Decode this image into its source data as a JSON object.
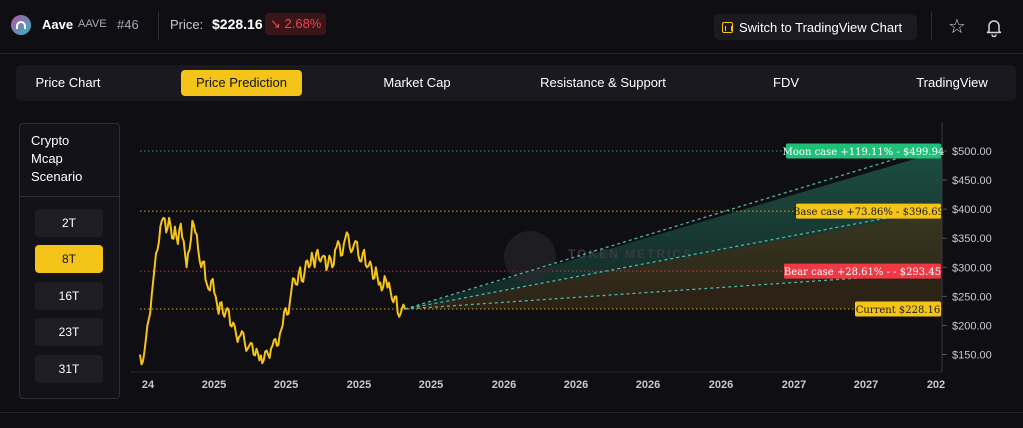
{
  "header": {
    "coin_name": "Aave",
    "coin_symbol": "AAVE",
    "rank": "#46",
    "price_label": "Price:",
    "price_value": "$228.16",
    "price_change": "↘ 2.68%",
    "tradingview_button": "Switch to TradingView Chart",
    "icons": {
      "logo": "aave-logo",
      "tradingview": "chart-icon",
      "star": "star-icon",
      "bell": "bell-icon"
    }
  },
  "tabs": [
    {
      "label": "Price Chart",
      "active": false
    },
    {
      "label": "Price Prediction",
      "active": true
    },
    {
      "label": "Market Cap",
      "active": false
    },
    {
      "label": "Resistance & Support",
      "active": false
    },
    {
      "label": "FDV",
      "active": false
    },
    {
      "label": "TradingView",
      "active": false
    }
  ],
  "scenario": {
    "title_lines": [
      "Crypto",
      "Mcap",
      "Scenario"
    ],
    "options": [
      {
        "label": "2T",
        "active": false
      },
      {
        "label": "8T",
        "active": true
      },
      {
        "label": "16T",
        "active": false
      },
      {
        "label": "23T",
        "active": false
      },
      {
        "label": "31T",
        "active": false
      }
    ]
  },
  "colors": {
    "accent": "#f5c418",
    "negative": "#f0444f",
    "moon": "#21c07a",
    "base": "#f5c418",
    "bear": "#ef3a45",
    "current": "#f5c418",
    "projection": "#4fb3a8"
  },
  "chart_data": {
    "type": "line",
    "y_ticks": [
      "$500.00",
      "$450.00",
      "$400.00",
      "$350.00",
      "$300.00",
      "$250.00",
      "$200.00",
      "$150.00"
    ],
    "ylim": [
      125,
      520
    ],
    "x_ticks": [
      "24",
      "2025",
      "2025",
      "2025",
      "2025",
      "2026",
      "2026",
      "2026",
      "2026",
      "2027",
      "2027",
      "202"
    ],
    "watermark": "TOKEN METRICS",
    "series": [
      {
        "values": [
          150,
          138,
          175,
          210,
          250,
          300,
          330,
          370,
          385,
          360,
          385,
          350,
          370,
          340,
          375,
          345,
          300,
          330,
          380,
          360,
          330,
          300,
          310,
          270,
          260,
          280,
          250,
          220,
          240,
          215,
          230,
          200,
          205,
          185,
          180,
          190,
          170,
          160,
          170,
          150,
          160,
          140,
          135,
          155,
          150,
          160,
          175,
          165,
          185,
          200,
          230,
          220,
          260,
          280,
          270,
          300,
          275,
          310,
          300,
          325,
          300,
          330,
          310,
          320,
          295,
          320,
          300,
          330,
          345,
          320,
          340,
          360,
          335,
          330,
          345,
          320,
          310,
          330,
          300,
          310,
          280,
          300,
          270,
          260,
          285,
          265,
          260,
          240,
          250,
          215,
          230,
          228
        ]
      }
    ],
    "scenarios": [
      {
        "label": "Moon case +119.11% - $499.94",
        "value": 499.94
      },
      {
        "label": "Base case +73.86% - $396.69",
        "value": 396.69
      },
      {
        "label": "Bear case +28.61% - - $293.45",
        "value": 293.45
      },
      {
        "label": "Current $228.16",
        "value": 228.16
      }
    ]
  }
}
